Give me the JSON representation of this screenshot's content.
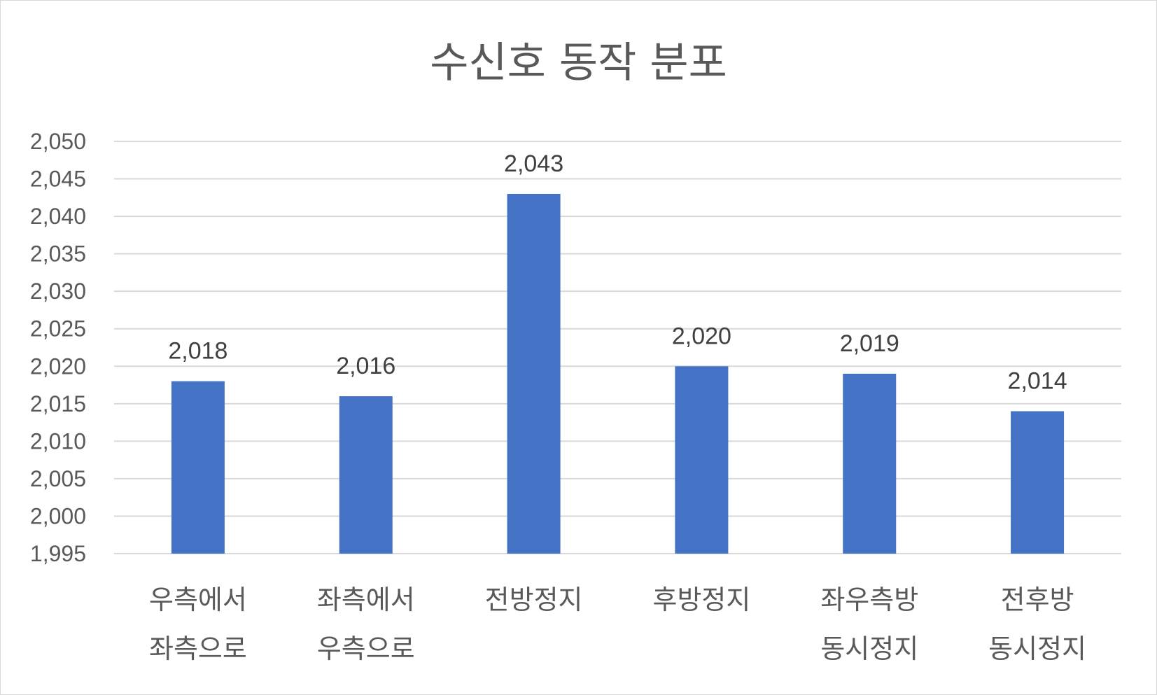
{
  "chart_data": {
    "type": "bar",
    "title": "수신호 동작 분포",
    "categories": [
      [
        "우측에서",
        "좌측으로"
      ],
      [
        "좌측에서",
        "우측으로"
      ],
      [
        "전방정지"
      ],
      [
        "후방정지"
      ],
      [
        "좌우측방",
        "동시정지"
      ],
      [
        "전후방",
        "동시정지"
      ]
    ],
    "values": [
      2018,
      2016,
      2043,
      2020,
      2019,
      2014
    ],
    "data_labels": [
      "2,018",
      "2,016",
      "2,043",
      "2,020",
      "2,019",
      "2,014"
    ],
    "ylim": [
      1995,
      2050
    ],
    "y_ticks": [
      1995,
      2000,
      2005,
      2010,
      2015,
      2020,
      2025,
      2030,
      2035,
      2040,
      2045,
      2050
    ],
    "y_tick_labels": [
      "1,995",
      "2,000",
      "2,005",
      "2,010",
      "2,015",
      "2,020",
      "2,025",
      "2,030",
      "2,035",
      "2,040",
      "2,045",
      "2,050"
    ],
    "grid": true,
    "legend": "none",
    "bar_color": "#4472c4",
    "grid_color": "#d9d9d9",
    "xlabel": "",
    "ylabel": ""
  }
}
